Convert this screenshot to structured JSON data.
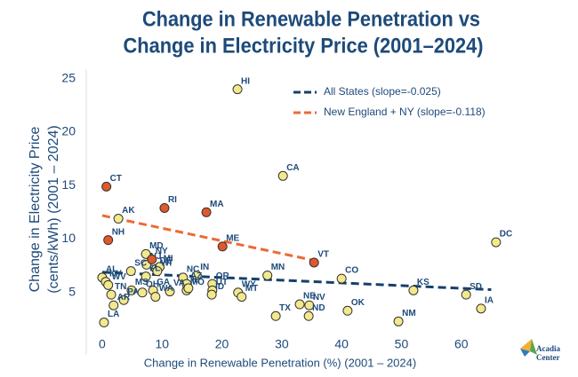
{
  "chart_data": {
    "type": "scatter",
    "title": [
      "Change in Renewable Penetration vs",
      "Change in Electricity Price (2001–2024)"
    ],
    "x_label": "Change in Renewable Penetration (%) (2001 – 2024)",
    "y_label": [
      "Change in Electricity Price",
      "(cents/kWh) (2001 – 2024)"
    ],
    "logo_text": [
      "Acadia",
      "Center"
    ],
    "xlim": [
      -2,
      68
    ],
    "ylim": [
      1,
      26
    ],
    "xticks": [
      0,
      10,
      20,
      30,
      40,
      50,
      60
    ],
    "yticks": [
      5,
      10,
      15,
      20,
      25
    ],
    "legend": "upper right",
    "points": [
      {
        "color": "#f3e98c",
        "labels": [
          "HI",
          "CA",
          "AK",
          "DC",
          "MD",
          "DE",
          "MI",
          "NJ",
          "AL",
          "KY",
          "TN",
          "LA",
          "AR",
          "WV",
          "SC",
          "MS",
          "PA",
          "FL",
          "WI",
          "GA",
          "OH",
          "WA",
          "VA",
          "NC",
          "AZ",
          "MO",
          "IL",
          "IN",
          "OR",
          "UT",
          "ID",
          "WY",
          "MT",
          "MN",
          "CO",
          "NE",
          "NV",
          "TX",
          "ND",
          "OK",
          "NM",
          "KS",
          "SD",
          "IA"
        ],
        "x": [
          22.6,
          30.2,
          2.7,
          65.8,
          7.3,
          9.0,
          9.6,
          7.4,
          0,
          0.6,
          1.5,
          0.3,
          1.9,
          1.0,
          4.8,
          4.9,
          3.6,
          7.3,
          9.2,
          8.5,
          6.7,
          8.9,
          11.3,
          13.5,
          14.1,
          14.1,
          14.4,
          15.8,
          18.4,
          18.4,
          18.3,
          22.7,
          23.3,
          27.6,
          40.0,
          33.0,
          34.6,
          29.0,
          34.5,
          41.0,
          49.5,
          52.0,
          60.8,
          63.3
        ],
        "values": [
          24.0,
          15.9,
          11.9,
          9.7,
          8.6,
          7.2,
          7.4,
          7.6,
          6.4,
          6.0,
          4.8,
          2.2,
          3.8,
          5.7,
          7.0,
          5.2,
          4.3,
          6.5,
          7.0,
          5.2,
          5.0,
          4.6,
          5.1,
          6.4,
          5.8,
          5.2,
          5.4,
          6.6,
          5.8,
          5.2,
          4.8,
          5.0,
          4.6,
          6.6,
          6.3,
          3.9,
          3.8,
          2.8,
          2.8,
          3.3,
          2.3,
          5.2,
          4.8,
          3.5
        ]
      },
      {
        "color": "#e0582d",
        "labels": [
          "CT",
          "RI",
          "MA",
          "NH",
          "ME",
          "VT",
          "NY"
        ],
        "x": [
          0.7,
          10.4,
          17.4,
          1.0,
          20.1,
          35.4,
          8.3
        ],
        "values": [
          14.9,
          12.9,
          12.5,
          9.9,
          9.3,
          7.8,
          8.1
        ]
      }
    ],
    "trendlines": [
      {
        "name": "All States (slope=-0.025)",
        "color": "#15406b",
        "x": [
          0,
          65
        ],
        "values": [
          6.9,
          5.27
        ]
      },
      {
        "name": "New England + NY (slope=-0.118)",
        "color": "#ec6a35",
        "x": [
          0,
          35.4
        ],
        "values": [
          12.2,
          8.0
        ]
      }
    ]
  }
}
